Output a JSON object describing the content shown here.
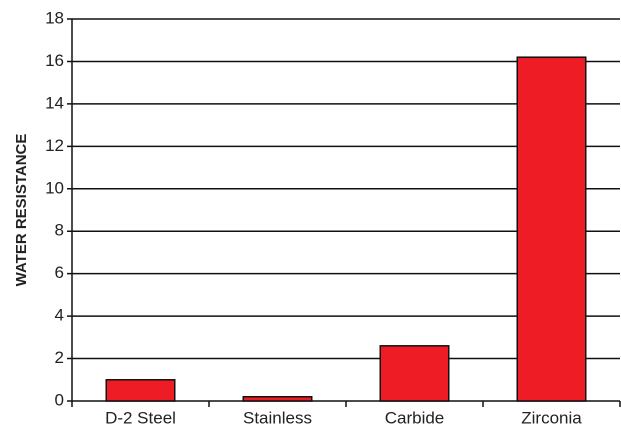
{
  "chart_data": {
    "type": "bar",
    "y_label": "WATER RESISTANCE",
    "categories": [
      "D-2 Steel",
      "Stainless",
      "Carbide",
      "Zirconia"
    ],
    "values": [
      1,
      0.2,
      2.6,
      16.2
    ],
    "color": "#ee1c24",
    "ylim": [
      0,
      18
    ],
    "yticks": [
      0,
      2,
      4,
      6,
      8,
      10,
      12,
      14,
      16,
      18
    ],
    "grid": true
  }
}
